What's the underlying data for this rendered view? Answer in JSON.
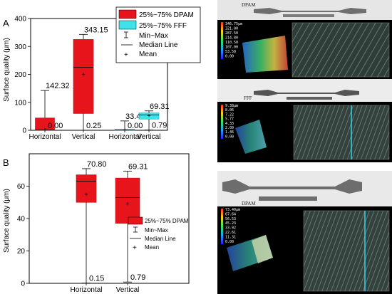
{
  "panels": {
    "a": "A",
    "b": "B"
  },
  "chart_data": [
    {
      "type": "box",
      "panel": "A",
      "ylabel": "Surface quality (μm)",
      "ylim": [
        0,
        400
      ],
      "yticks": [
        0,
        100,
        200,
        300,
        400
      ],
      "categories": [
        "Horizontal",
        "Vertical",
        "Horizontal",
        "Vertical"
      ],
      "boxes": [
        {
          "group": "DPAM",
          "category": "Horizontal",
          "q1": 0,
          "q3": 44,
          "median": 1,
          "mean": 1,
          "min": 0.0,
          "max": 142.32,
          "min_label": "0.00",
          "max_label": "142.32"
        },
        {
          "group": "DPAM",
          "category": "Vertical",
          "q1": 60,
          "q3": 325,
          "median": 225,
          "mean": 200,
          "min": 0.25,
          "max": 343.15,
          "min_label": "0.25",
          "max_label": "343.15"
        },
        {
          "group": "FFF",
          "category": "Horizontal",
          "q1": 0,
          "q3": 3,
          "median": 1,
          "mean": 1,
          "min": 0.0,
          "max": 33.43,
          "min_label": "0.00",
          "max_label": "33.43"
        },
        {
          "group": "FFF",
          "category": "Vertical",
          "q1": 40,
          "q3": 62,
          "median": 55,
          "mean": 52,
          "min": 0.79,
          "max": 69.31,
          "min_label": "0.79",
          "max_label": "69.31"
        }
      ],
      "legend": [
        "25%~75% DPAM",
        "25%~75% FFF",
        "Min~Max",
        "Median Line",
        "Mean"
      ],
      "colors": {
        "DPAM": "#e8141c",
        "FFF": "#3ee3ea"
      }
    },
    {
      "type": "box",
      "panel": "B",
      "ylabel": "Surface quality (μm)",
      "ylim": [
        0,
        80
      ],
      "yticks": [
        0,
        20,
        40,
        60
      ],
      "categories": [
        "Horizontal",
        "Vertical"
      ],
      "boxes": [
        {
          "group": "DPAM",
          "category": "Horizontal",
          "q1": 50,
          "q3": 67,
          "median": 63,
          "mean": 55,
          "min": 0.15,
          "max": 70.8,
          "min_label": "0.15",
          "max_label": "70.80"
        },
        {
          "group": "DPAM",
          "category": "Vertical",
          "q1": 37,
          "q3": 65,
          "median": 53,
          "mean": 49,
          "min": 0.79,
          "max": 69.31,
          "min_label": "0.79",
          "max_label": "69.31"
        }
      ],
      "legend": [
        "25%~75% DPAM",
        "Min~Max",
        "Median Line",
        "Mean"
      ],
      "colors": {
        "DPAM": "#e8141c"
      }
    }
  ],
  "images": {
    "photo1_label": "DPAM",
    "photo2_label": "FFF",
    "photo3_label": "DPAM",
    "scale1": [
      "346.75μm",
      "321.00",
      "287.50",
      "214.80",
      "110.50",
      "107.00",
      "53.50",
      "0.00"
    ],
    "scale2": [
      "9.38μm",
      "8.06",
      "7.22",
      "5.77",
      "4.33",
      "2.09",
      "1.46",
      "0.00"
    ],
    "scale3": [
      "73.40μm",
      "67.64",
      "56.53",
      "45.23",
      "33.92",
      "22.61",
      "11.31",
      "0.00"
    ]
  }
}
